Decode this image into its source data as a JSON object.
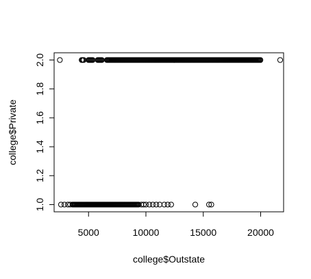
{
  "chart_data": {
    "type": "scatter",
    "title": "",
    "xlabel": "college$Outstate",
    "ylabel": "college$Private",
    "xlim": [
      2000,
      22000
    ],
    "ylim": [
      0.95,
      2.05
    ],
    "x_ticks": [
      5000,
      10000,
      15000,
      20000
    ],
    "y_ticks": [
      1.0,
      1.2,
      1.4,
      1.6,
      1.8,
      2.0
    ],
    "y_tick_labels": [
      "1.0",
      "1.2",
      "1.4",
      "1.6",
      "1.8",
      "2.0"
    ],
    "grid": false,
    "marker": "open-circle",
    "marker_color": "#000000",
    "series": [
      {
        "values": [
          {
            "y": 1,
            "x_dense_ranges": [
              [
                3600,
                9400
              ]
            ],
            "x_sparse": [
              2600,
              2900,
              3200,
              3400,
              9600,
              9800,
              10000,
              10300,
              10600,
              10900,
              11200,
              11600,
              11900,
              12200,
              14300,
              15500,
              15700
            ]
          },
          {
            "y": 2,
            "x_dense_ranges": [
              [
                4400,
                4600
              ],
              [
                5000,
                5400
              ],
              [
                5800,
                6200
              ],
              [
                6600,
                20000
              ]
            ],
            "x_sparse": [
              2500,
              21700
            ]
          }
        ]
      }
    ]
  }
}
